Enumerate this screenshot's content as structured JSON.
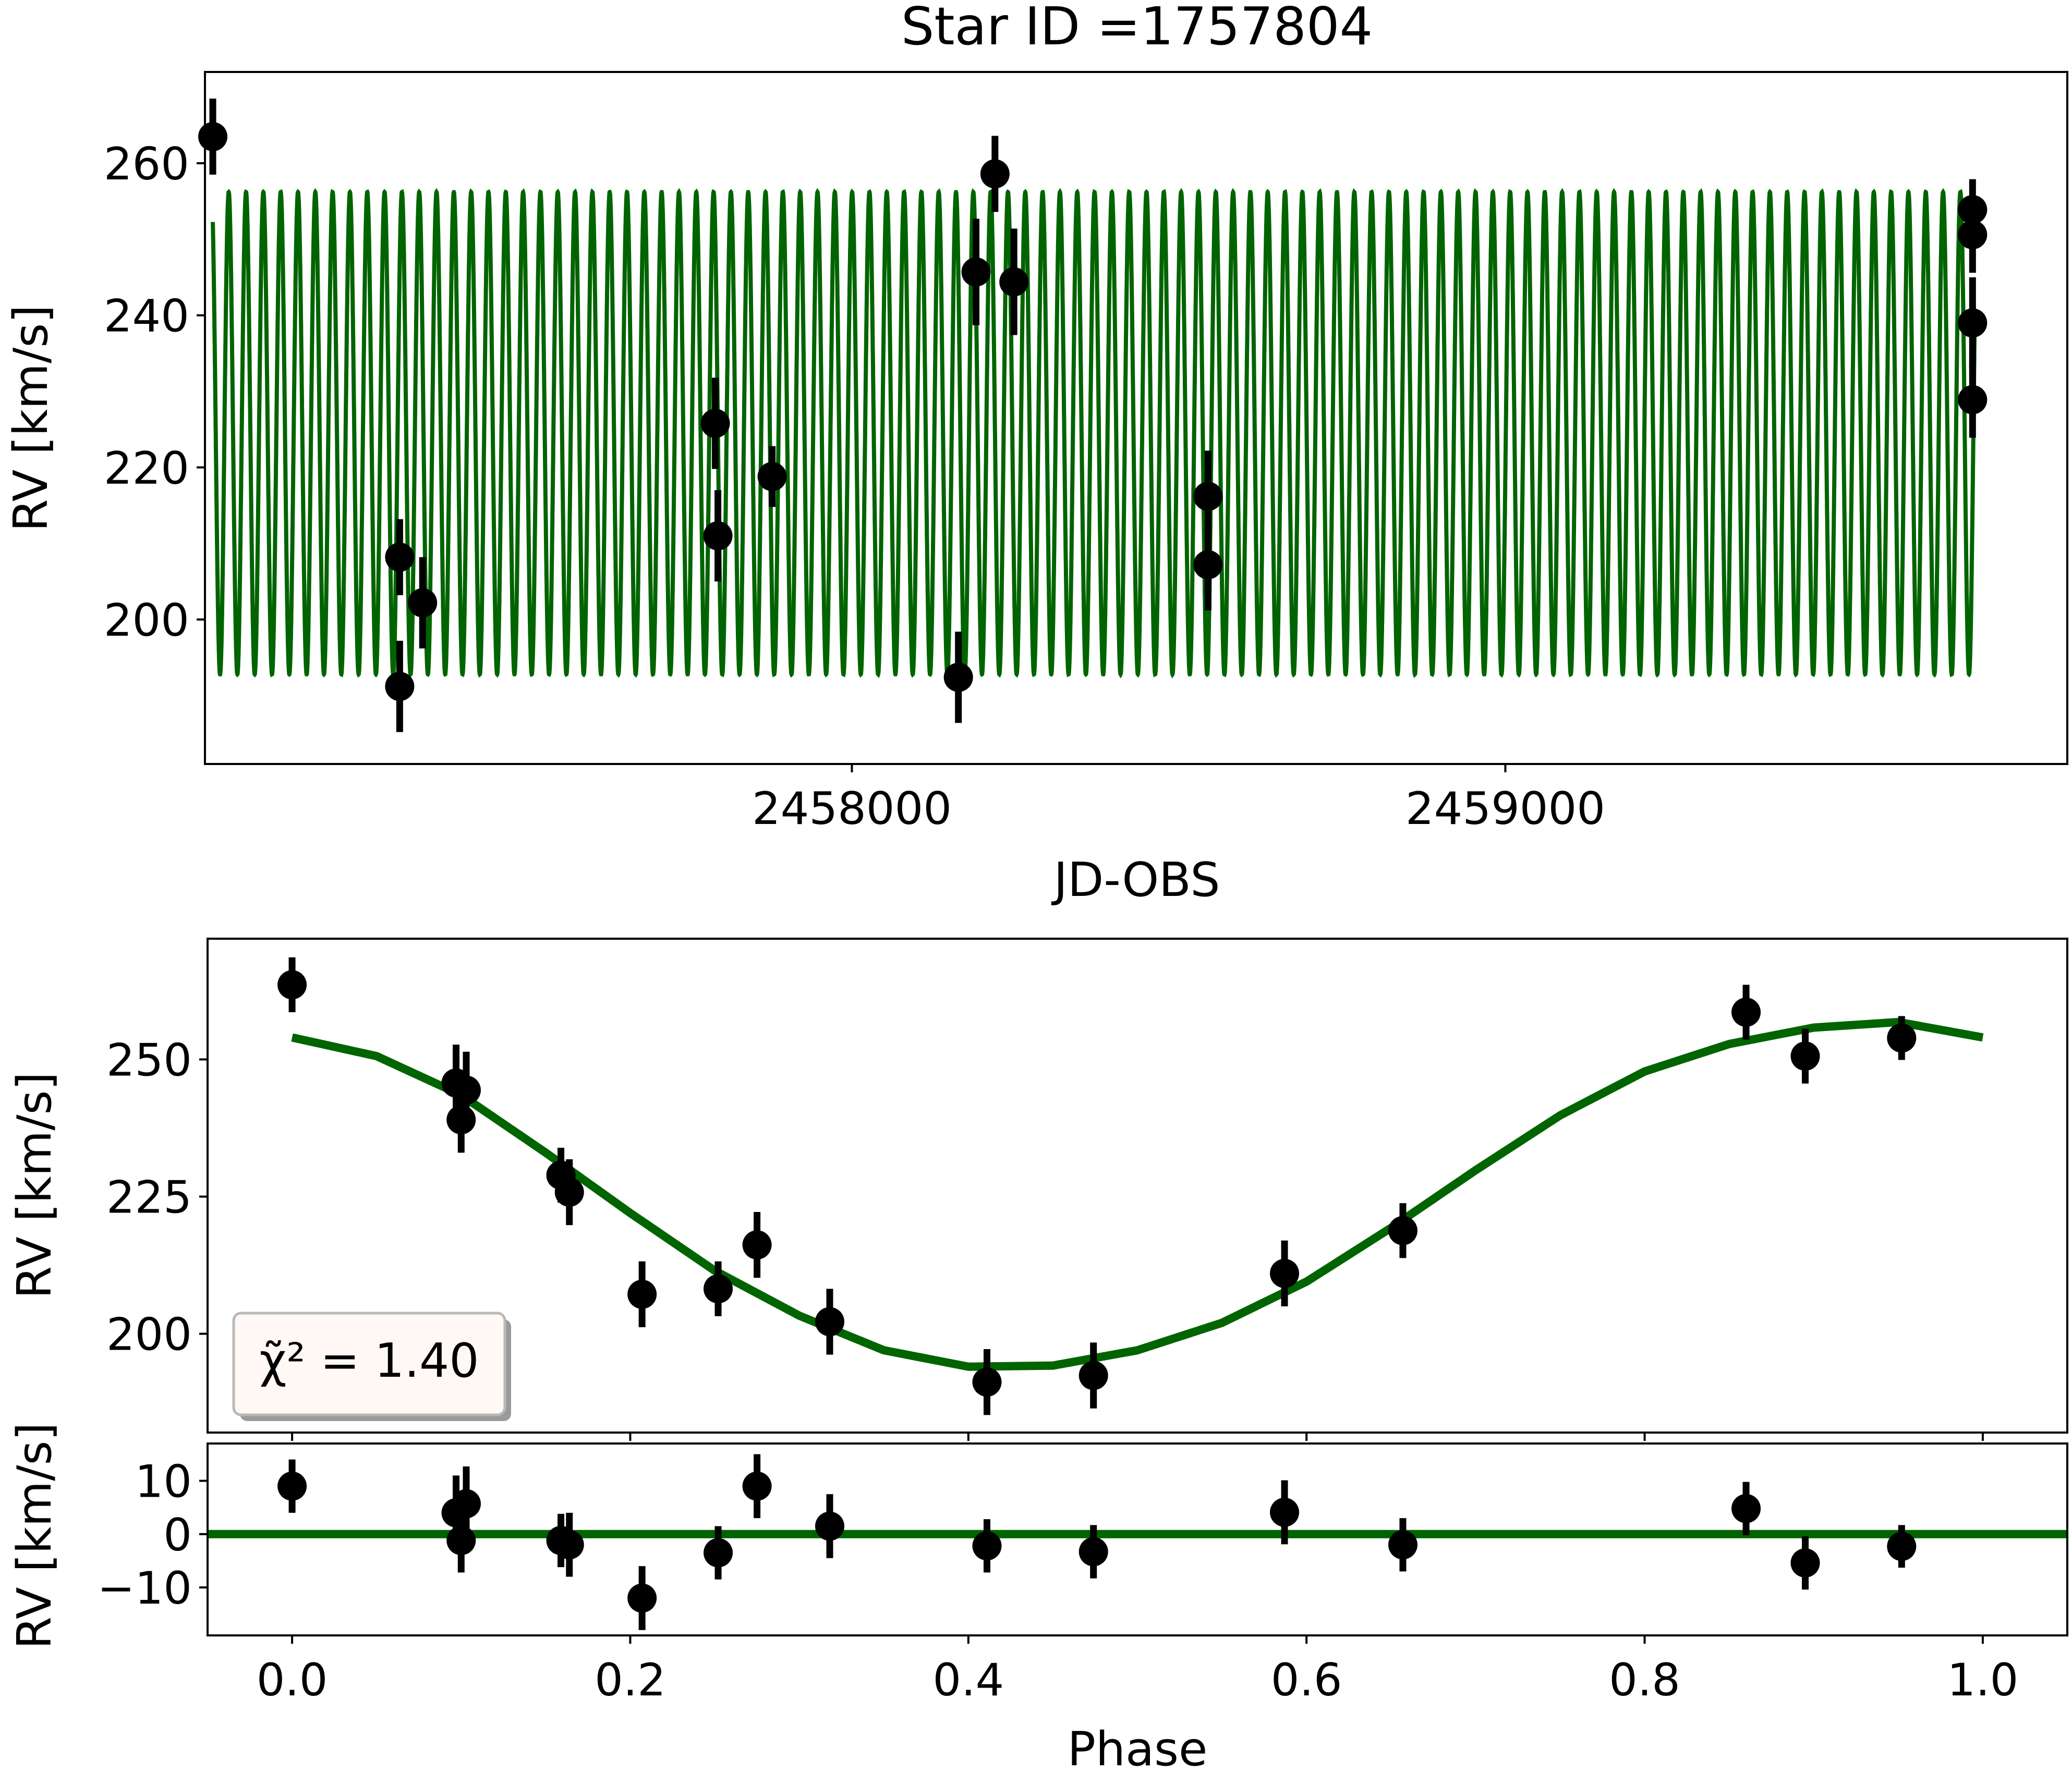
{
  "chart_data": [
    {
      "id": "rv-time",
      "type": "scatter",
      "title": "Star ID =1757804",
      "xlabel": "JD-OBS",
      "ylabel": "RV [km/s]",
      "xlim": [
        2457010,
        2459860
      ],
      "ylim": [
        181,
        272
      ],
      "xticks": [
        2458000,
        2459000
      ],
      "yticks": [
        200,
        220,
        240,
        260
      ],
      "model_color": "#006400",
      "model": {
        "kind": "periodic-orbit",
        "period_days": 26.5,
        "epoch": 2457022,
        "center": 224.5,
        "semi_amplitude": 31.7,
        "x_range": [
          2457022,
          2459718
        ]
      },
      "points": [
        {
          "x": 2457022,
          "y": 263.5,
          "err": 5
        },
        {
          "x": 2457308,
          "y": 208.2,
          "err": 5
        },
        {
          "x": 2457308,
          "y": 191.2,
          "err": 6
        },
        {
          "x": 2457343,
          "y": 202.2,
          "err": 6
        },
        {
          "x": 2457791,
          "y": 225.8,
          "err": 6
        },
        {
          "x": 2457795,
          "y": 211.0,
          "err": 6
        },
        {
          "x": 2457878,
          "y": 218.8,
          "err": 4
        },
        {
          "x": 2458163,
          "y": 192.4,
          "err": 6
        },
        {
          "x": 2458190,
          "y": 245.7,
          "err": 7
        },
        {
          "x": 2458219,
          "y": 258.6,
          "err": 5
        },
        {
          "x": 2458248,
          "y": 244.4,
          "err": 7
        },
        {
          "x": 2458545,
          "y": 216.2,
          "err": 6
        },
        {
          "x": 2458545,
          "y": 207.2,
          "err": 6
        },
        {
          "x": 2459715,
          "y": 253.9,
          "err": 4
        },
        {
          "x": 2459715,
          "y": 250.6,
          "err": 5
        },
        {
          "x": 2459715,
          "y": 239.0,
          "err": 6
        },
        {
          "x": 2459715,
          "y": 228.9,
          "err": 5
        }
      ]
    },
    {
      "id": "rv-phase",
      "type": "scatter",
      "xlabel": "",
      "ylabel": "RV [km/s]",
      "xlim": [
        -0.05,
        1.05
      ],
      "ylim": [
        182,
        272
      ],
      "yticks": [
        200,
        225,
        250
      ],
      "annotation": "χ̃² = 1.40",
      "model_color": "#006400",
      "model": [
        {
          "x": 0.0,
          "y": 254.0
        },
        {
          "x": 0.05,
          "y": 250.6
        },
        {
          "x": 0.1,
          "y": 243.5
        },
        {
          "x": 0.15,
          "y": 233.0
        },
        {
          "x": 0.2,
          "y": 222.0
        },
        {
          "x": 0.25,
          "y": 211.5
        },
        {
          "x": 0.3,
          "y": 203.3
        },
        {
          "x": 0.35,
          "y": 197.0
        },
        {
          "x": 0.4,
          "y": 194.0
        },
        {
          "x": 0.45,
          "y": 194.2
        },
        {
          "x": 0.5,
          "y": 197.0
        },
        {
          "x": 0.55,
          "y": 202.0
        },
        {
          "x": 0.6,
          "y": 209.5
        },
        {
          "x": 0.65,
          "y": 219.3
        },
        {
          "x": 0.7,
          "y": 229.8
        },
        {
          "x": 0.75,
          "y": 239.8
        },
        {
          "x": 0.8,
          "y": 247.8
        },
        {
          "x": 0.85,
          "y": 252.8
        },
        {
          "x": 0.9,
          "y": 255.8
        },
        {
          "x": 0.95,
          "y": 256.8
        },
        {
          "x": 1.0,
          "y": 254.0
        }
      ],
      "points": [
        {
          "x": 0.0,
          "y": 263.6,
          "err": 5
        },
        {
          "x": 0.097,
          "y": 245.7,
          "err": 7
        },
        {
          "x": 0.103,
          "y": 244.4,
          "err": 7
        },
        {
          "x": 0.1,
          "y": 239.0,
          "err": 6
        },
        {
          "x": 0.159,
          "y": 228.9,
          "err": 5
        },
        {
          "x": 0.164,
          "y": 225.8,
          "err": 6
        },
        {
          "x": 0.207,
          "y": 207.2,
          "err": 6
        },
        {
          "x": 0.252,
          "y": 208.2,
          "err": 5
        },
        {
          "x": 0.275,
          "y": 216.2,
          "err": 6
        },
        {
          "x": 0.318,
          "y": 202.2,
          "err": 6
        },
        {
          "x": 0.411,
          "y": 191.2,
          "err": 6
        },
        {
          "x": 0.474,
          "y": 192.4,
          "err": 6
        },
        {
          "x": 0.587,
          "y": 211.0,
          "err": 6
        },
        {
          "x": 0.657,
          "y": 218.8,
          "err": 5
        },
        {
          "x": 0.86,
          "y": 258.6,
          "err": 5
        },
        {
          "x": 0.895,
          "y": 250.6,
          "err": 5
        },
        {
          "x": 0.952,
          "y": 253.9,
          "err": 4
        }
      ]
    },
    {
      "id": "rv-residuals",
      "type": "scatter",
      "xlabel": "Phase",
      "ylabel": "RV [km/s]",
      "xlim": [
        -0.05,
        1.05
      ],
      "ylim": [
        -19,
        17
      ],
      "xticks": [
        0.0,
        0.2,
        0.4,
        0.6,
        0.8,
        1.0
      ],
      "xticklabels": [
        "0.0",
        "0.2",
        "0.4",
        "0.6",
        "0.8",
        "1.0"
      ],
      "yticks": [
        10,
        0,
        -10
      ],
      "yticklabels": [
        "10",
        "0",
        "−10"
      ],
      "zero_line_color": "#006400",
      "points": [
        {
          "x": 0.0,
          "y": 9.0,
          "err": 5
        },
        {
          "x": 0.097,
          "y": 4.0,
          "err": 7
        },
        {
          "x": 0.103,
          "y": 5.7,
          "err": 7
        },
        {
          "x": 0.1,
          "y": -1.2,
          "err": 6
        },
        {
          "x": 0.159,
          "y": -1.2,
          "err": 5
        },
        {
          "x": 0.164,
          "y": -2.0,
          "err": 6
        },
        {
          "x": 0.207,
          "y": -12.0,
          "err": 6
        },
        {
          "x": 0.252,
          "y": -3.5,
          "err": 5
        },
        {
          "x": 0.275,
          "y": 9.0,
          "err": 6
        },
        {
          "x": 0.318,
          "y": 1.5,
          "err": 6
        },
        {
          "x": 0.411,
          "y": -2.2,
          "err": 5
        },
        {
          "x": 0.474,
          "y": -3.3,
          "err": 5
        },
        {
          "x": 0.587,
          "y": 4.1,
          "err": 6
        },
        {
          "x": 0.657,
          "y": -2.0,
          "err": 5
        },
        {
          "x": 0.86,
          "y": 4.8,
          "err": 5
        },
        {
          "x": 0.895,
          "y": -5.4,
          "err": 5
        },
        {
          "x": 0.952,
          "y": -2.3,
          "err": 4
        }
      ]
    }
  ]
}
